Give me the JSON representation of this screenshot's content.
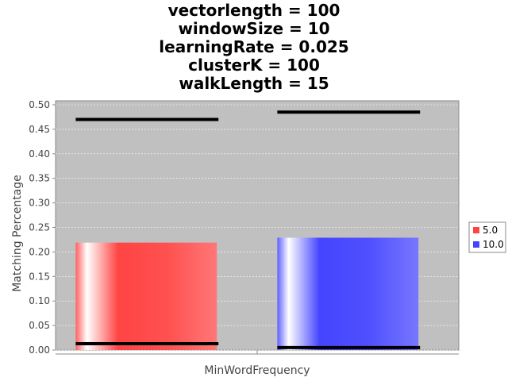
{
  "chart_data": {
    "type": "bar",
    "title_lines": [
      "vectorlength = 100",
      "windowSize = 10",
      "learningRate = 0.025",
      "clusterK = 100",
      "walkLength = 15"
    ],
    "xlabel": "MinWordFrequency",
    "ylabel": "Matching Percentage",
    "ylim": [
      0,
      0.5
    ],
    "yticks": [
      "0.00",
      "0.05",
      "0.10",
      "0.15",
      "0.20",
      "0.25",
      "0.30",
      "0.35",
      "0.40",
      "0.45",
      "0.50"
    ],
    "grid": true,
    "legend_position": "right",
    "series": [
      {
        "name": "5.0",
        "value": 0.219,
        "color": "#ff4444",
        "range_low": 0.013,
        "range_high": 0.47
      },
      {
        "name": "10.0",
        "value": 0.229,
        "color": "#4444ff",
        "range_low": 0.005,
        "range_high": 0.485
      }
    ]
  }
}
